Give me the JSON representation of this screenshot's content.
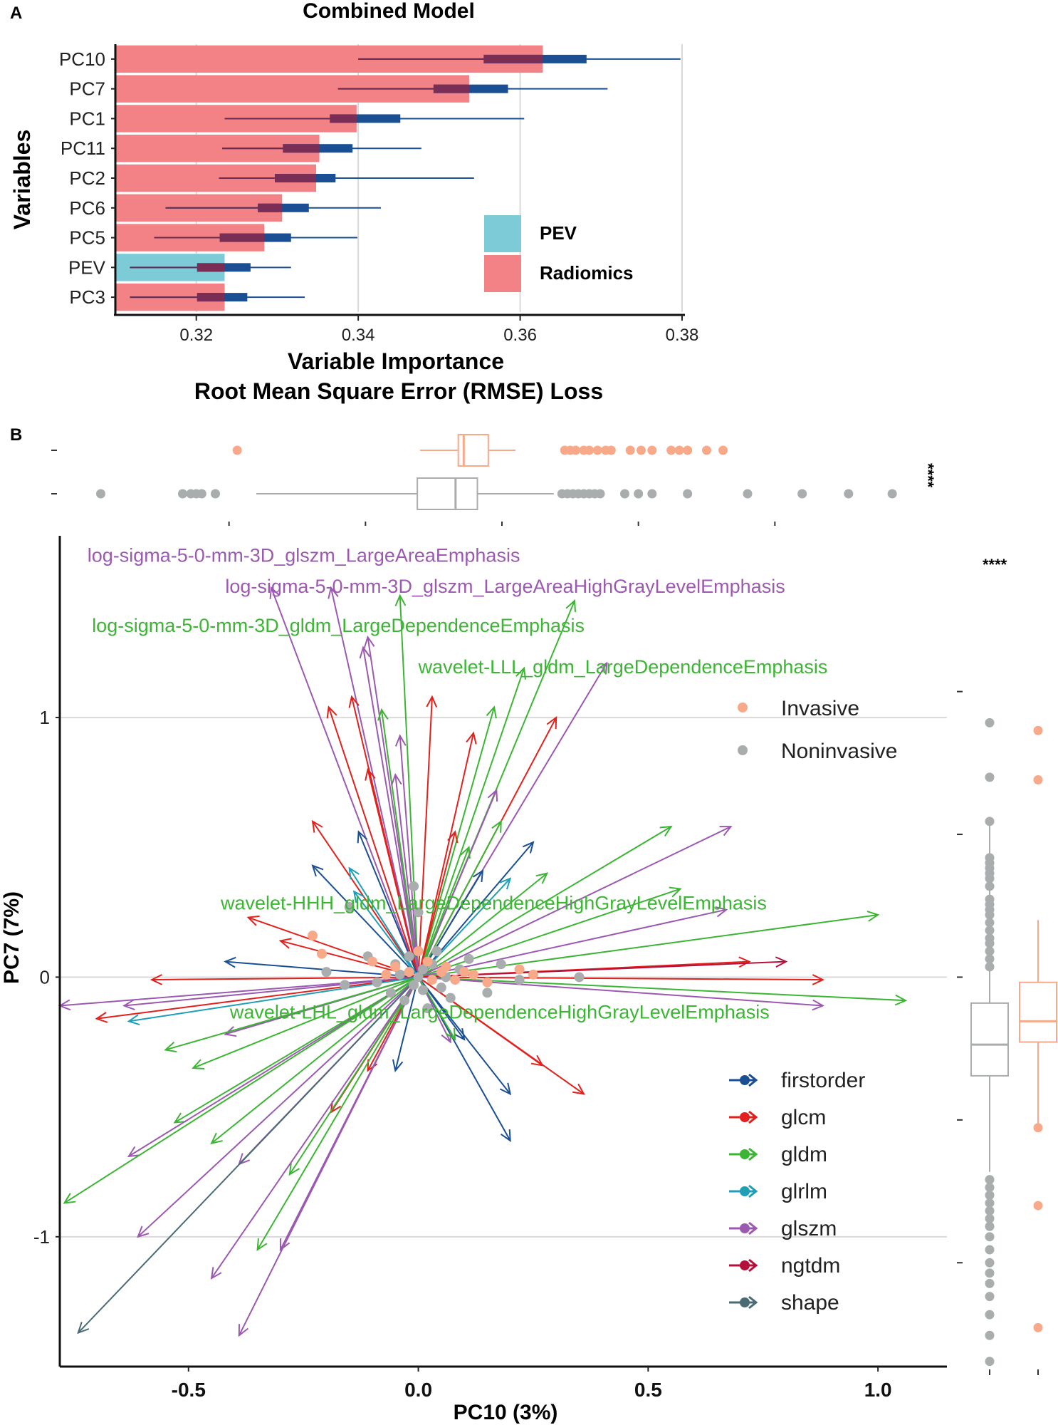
{
  "chart_data": [
    {
      "panel": "A",
      "type": "bar",
      "title": "Combined Model",
      "xlabel": "Variable Importance",
      "xlabel2": "Root Mean Square Error (RMSE) Loss",
      "ylabel": "Variables",
      "xlim": [
        0.31,
        0.38
      ],
      "xticks": [
        0.32,
        0.34,
        0.36,
        0.38
      ],
      "xtick_labels": [
        "0.32",
        "0.34",
        "0.36",
        "0.38"
      ],
      "grid": "vertical",
      "legend": [
        {
          "label": "PEV",
          "color": "#7ecbd8"
        },
        {
          "label": "Radiomics",
          "color": "#f28285"
        }
      ],
      "categories": [
        "PC10",
        "PC7",
        "PC1",
        "PC11",
        "PC2",
        "PC6",
        "PC5",
        "PEV",
        "PC3"
      ],
      "values": [
        0.3628,
        0.3537,
        0.3398,
        0.3352,
        0.3348,
        0.3306,
        0.3284,
        0.3235,
        0.3235
      ],
      "groups": [
        "Radiomics",
        "Radiomics",
        "Radiomics",
        "Radiomics",
        "Radiomics",
        "Radiomics",
        "Radiomics",
        "PEV",
        "Radiomics"
      ],
      "boxplots": [
        {
          "min": 0.34,
          "q1": 0.3555,
          "q3": 0.3682,
          "max": 0.3798
        },
        {
          "min": 0.3375,
          "q1": 0.3493,
          "q3": 0.3585,
          "max": 0.3708
        },
        {
          "min": 0.3235,
          "q1": 0.3365,
          "q3": 0.3452,
          "max": 0.3605
        },
        {
          "min": 0.3232,
          "q1": 0.3307,
          "q3": 0.3393,
          "max": 0.3478
        },
        {
          "min": 0.3228,
          "q1": 0.3297,
          "q3": 0.3372,
          "max": 0.3543
        },
        {
          "min": 0.3162,
          "q1": 0.3276,
          "q3": 0.3339,
          "max": 0.3428
        },
        {
          "min": 0.3148,
          "q1": 0.3229,
          "q3": 0.3317,
          "max": 0.3399
        },
        {
          "min": 0.3118,
          "q1": 0.3201,
          "q3": 0.3267,
          "max": 0.3317
        },
        {
          "min": 0.3118,
          "q1": 0.3201,
          "q3": 0.3263,
          "max": 0.3334
        }
      ]
    },
    {
      "panel": "B",
      "type": "scatter",
      "xlabel": "PC10 (3%)",
      "ylabel": "PC7 (7%)",
      "xlim": [
        -0.78,
        1.15
      ],
      "ylim": [
        -1.5,
        1.7
      ],
      "xticks": [
        -0.5,
        0.0,
        0.5,
        1.0
      ],
      "xtick_labels": [
        "-0.5",
        "0.0",
        "0.5",
        "1.0"
      ],
      "yticks": [
        -1,
        0,
        1
      ],
      "ytick_labels": [
        "-1",
        "0",
        "1"
      ],
      "significance": "****",
      "group_legend": [
        {
          "label": "Invasive",
          "color": "#f7a98a"
        },
        {
          "label": "Noninvasive",
          "color": "#a9adad"
        }
      ],
      "class_legend": [
        {
          "label": "firstorder",
          "color": "#1b4f93"
        },
        {
          "label": "glcm",
          "color": "#e3201b"
        },
        {
          "label": "gldm",
          "color": "#3cb534"
        },
        {
          "label": "glrlm",
          "color": "#1f9eb5"
        },
        {
          "label": "glszm",
          "color": "#9b59b0"
        },
        {
          "label": "ngtdm",
          "color": "#b5103b"
        },
        {
          "label": "shape",
          "color": "#4a6b73"
        }
      ],
      "annotations": [
        {
          "text": "log-sigma-5-0-mm-3D_glszm_LargeAreaEmphasis",
          "x": -0.72,
          "y": 1.6,
          "color": "#9b59b0"
        },
        {
          "text": "log-sigma-5-0-mm-3D_glszm_LargeAreaHighGrayLevelEmphasis",
          "x": -0.42,
          "y": 1.48,
          "color": "#9b59b0"
        },
        {
          "text": "log-sigma-5-0-mm-3D_gldm_LargeDependenceEmphasis",
          "x": -0.71,
          "y": 1.33,
          "color": "#3cb534"
        },
        {
          "text": "wavelet-LLL_gldm_LargeDependenceEmphasis",
          "x": 0.0,
          "y": 1.17,
          "color": "#3cb534"
        },
        {
          "text": "wavelet-HHH_gldm_LargeDependenceHighGrayLevelEmphasis",
          "x": -0.43,
          "y": 0.26,
          "color": "#3cb534"
        },
        {
          "text": "wavelet-LHL_gldm_LargeDependenceHighGrayLevelEmphasis",
          "x": -0.41,
          "y": -0.16,
          "color": "#3cb534"
        }
      ],
      "loadings": [
        {
          "class": "glszm",
          "x": -0.32,
          "y": 1.5
        },
        {
          "class": "glszm",
          "x": -0.19,
          "y": 1.5
        },
        {
          "class": "gldm",
          "x": -0.04,
          "y": 1.47
        },
        {
          "class": "gldm",
          "x": 0.34,
          "y": 1.45
        },
        {
          "class": "glszm",
          "x": -0.11,
          "y": 1.31
        },
        {
          "class": "glszm",
          "x": -0.12,
          "y": 1.27
        },
        {
          "class": "glszm",
          "x": 0.41,
          "y": 1.21
        },
        {
          "class": "gldm",
          "x": 0.23,
          "y": 1.19
        },
        {
          "class": "glcm",
          "x": -0.195,
          "y": 1.04
        },
        {
          "class": "glcm",
          "x": -0.145,
          "y": 1.08
        },
        {
          "class": "gldm",
          "x": -0.08,
          "y": 1.03
        },
        {
          "class": "glcm",
          "x": 0.03,
          "y": 1.08
        },
        {
          "class": "gldm",
          "x": 0.165,
          "y": 1.04
        },
        {
          "class": "glcm",
          "x": 0.3,
          "y": 1.0
        },
        {
          "class": "glszm",
          "x": -0.04,
          "y": 0.93
        },
        {
          "class": "glcm",
          "x": 0.12,
          "y": 0.94
        },
        {
          "class": "glcm",
          "x": -0.11,
          "y": 0.8
        },
        {
          "class": "glszm",
          "x": -0.05,
          "y": 0.78
        },
        {
          "class": "glszm",
          "x": 0.17,
          "y": 0.72
        },
        {
          "class": "gldm",
          "x": 0.18,
          "y": 0.6
        },
        {
          "class": "glcm",
          "x": -0.23,
          "y": 0.6
        },
        {
          "class": "firstorder",
          "x": -0.13,
          "y": 0.56
        },
        {
          "class": "glcm",
          "x": 0.08,
          "y": 0.56
        },
        {
          "class": "gldm",
          "x": 0.11,
          "y": 0.5
        },
        {
          "class": "gldm",
          "x": 0.55,
          "y": 0.58
        },
        {
          "class": "glszm",
          "x": 0.68,
          "y": 0.58
        },
        {
          "class": "firstorder",
          "x": 0.25,
          "y": 0.52
        },
        {
          "class": "firstorder",
          "x": -0.23,
          "y": 0.43
        },
        {
          "class": "glrlm",
          "x": -0.15,
          "y": 0.42
        },
        {
          "class": "firstorder",
          "x": 0.14,
          "y": 0.41
        },
        {
          "class": "glrlm",
          "x": 0.2,
          "y": 0.38
        },
        {
          "class": "gldm",
          "x": 0.28,
          "y": 0.4
        },
        {
          "class": "gldm",
          "x": 0.57,
          "y": 0.34
        },
        {
          "class": "glrlm",
          "x": -0.14,
          "y": 0.33
        },
        {
          "class": "gldm",
          "x": 1.0,
          "y": 0.24
        },
        {
          "class": "glszm",
          "x": 0.67,
          "y": 0.26
        },
        {
          "class": "glcm",
          "x": -0.37,
          "y": 0.23
        },
        {
          "class": "glcm",
          "x": -0.3,
          "y": 0.14
        },
        {
          "class": "firstorder",
          "x": -0.42,
          "y": 0.06
        },
        {
          "class": "glcm",
          "x": 0.72,
          "y": 0.06
        },
        {
          "class": "ngtdm",
          "x": 0.8,
          "y": 0.06
        },
        {
          "class": "glcm",
          "x": -0.58,
          "y": -0.01
        },
        {
          "class": "glszm",
          "x": -0.78,
          "y": -0.11
        },
        {
          "class": "glszm",
          "x": -0.64,
          "y": -0.11
        },
        {
          "class": "glcm",
          "x": -0.7,
          "y": -0.16
        },
        {
          "class": "glrlm",
          "x": -0.63,
          "y": -0.17
        },
        {
          "class": "glcm",
          "x": 0.88,
          "y": -0.01
        },
        {
          "class": "gldm",
          "x": 1.06,
          "y": -0.09
        },
        {
          "class": "glszm",
          "x": 0.88,
          "y": -0.11
        },
        {
          "class": "glszm",
          "x": -0.42,
          "y": -0.22
        },
        {
          "class": "gldm",
          "x": -0.49,
          "y": -0.35
        },
        {
          "class": "gldm",
          "x": -0.55,
          "y": -0.28
        },
        {
          "class": "glcm",
          "x": -0.11,
          "y": -0.36
        },
        {
          "class": "firstorder",
          "x": -0.05,
          "y": -0.36
        },
        {
          "class": "glcm",
          "x": 0.36,
          "y": -0.45
        },
        {
          "class": "firstorder",
          "x": 0.2,
          "y": -0.45
        },
        {
          "class": "glcm",
          "x": 0.27,
          "y": -0.34
        },
        {
          "class": "gldm",
          "x": -0.53,
          "y": -0.56
        },
        {
          "class": "firstorder",
          "x": 0.2,
          "y": -0.63
        },
        {
          "class": "glcm",
          "x": -0.19,
          "y": -0.52
        },
        {
          "class": "glszm",
          "x": -0.39,
          "y": -0.72
        },
        {
          "class": "gldm",
          "x": -0.45,
          "y": -0.64
        },
        {
          "class": "glszm",
          "x": -0.63,
          "y": -0.69
        },
        {
          "class": "gldm",
          "x": -0.28,
          "y": -0.76
        },
        {
          "class": "gldm",
          "x": -0.77,
          "y": -0.87
        },
        {
          "class": "glszm",
          "x": -0.61,
          "y": -1.0
        },
        {
          "class": "gldm",
          "x": -0.35,
          "y": -1.05
        },
        {
          "class": "glszm",
          "x": -0.3,
          "y": -1.05
        },
        {
          "class": "glszm",
          "x": -0.45,
          "y": -1.16
        },
        {
          "class": "glszm",
          "x": -0.39,
          "y": -1.38
        },
        {
          "class": "shape",
          "x": -0.74,
          "y": -1.37
        },
        {
          "class": "glszm",
          "x": 0.07,
          "y": -0.25
        },
        {
          "class": "firstorder",
          "x": 0.1,
          "y": -0.24
        },
        {
          "class": "gldm",
          "x": 0.08,
          "y": -0.24
        }
      ],
      "points_invasive": [
        [
          -0.23,
          0.16
        ],
        [
          -0.21,
          0.09
        ],
        [
          -0.1,
          0.06
        ],
        [
          -0.05,
          0.04
        ],
        [
          0.0,
          0.1
        ],
        [
          0.02,
          0.06
        ],
        [
          0.05,
          0.02
        ],
        [
          0.08,
          -0.01
        ],
        [
          0.12,
          0.01
        ],
        [
          0.15,
          -0.02
        ],
        [
          0.22,
          0.03
        ],
        [
          0.25,
          0.01
        ],
        [
          0.03,
          -0.01
        ],
        [
          -0.02,
          0.02
        ],
        [
          0.06,
          0.04
        ],
        [
          -0.07,
          0.01
        ],
        [
          0.1,
          0.02
        ]
      ],
      "points_noninvasive": [
        [
          -0.01,
          0.35
        ],
        [
          0.0,
          0.25
        ],
        [
          -0.15,
          0.27
        ],
        [
          0.35,
          0.0
        ],
        [
          0.22,
          -0.01
        ],
        [
          0.15,
          -0.06
        ],
        [
          -0.02,
          0.08
        ],
        [
          -0.05,
          0.05
        ],
        [
          0.03,
          0.05
        ],
        [
          0.05,
          -0.04
        ],
        [
          -0.09,
          -0.02
        ],
        [
          0.01,
          -0.05
        ],
        [
          -0.2,
          0.02
        ],
        [
          -0.16,
          -0.03
        ],
        [
          0.11,
          0.07
        ],
        [
          0.18,
          0.05
        ],
        [
          -0.03,
          -0.09
        ],
        [
          0.02,
          -0.12
        ],
        [
          0.07,
          -0.08
        ],
        [
          -0.11,
          0.08
        ],
        [
          0.09,
          0.03
        ],
        [
          -0.06,
          -0.06
        ],
        [
          0.04,
          0.1
        ],
        [
          0.0,
          0.0
        ],
        [
          -0.04,
          0.01
        ],
        [
          0.06,
          0.0
        ],
        [
          -0.01,
          -0.03
        ],
        [
          0.01,
          0.03
        ]
      ],
      "box_top": {
        "Invasive": {
          "min": -0.3,
          "q1": -0.16,
          "median": -0.14,
          "q3": -0.05,
          "max": 0.05,
          "outliers": [
            -0.97,
            0.23,
            0.25,
            0.27,
            0.3,
            0.32,
            0.35,
            0.38,
            0.4,
            0.47,
            0.51,
            0.55,
            0.62,
            0.65,
            0.68,
            0.75,
            0.81
          ]
        },
        "Noninvasive": {
          "min": -0.9,
          "q1": -0.31,
          "median": -0.17,
          "q3": -0.09,
          "max": 0.19,
          "outliers": [
            -1.47,
            -1.17,
            -1.14,
            -1.12,
            -1.1,
            -1.05,
            0.22,
            0.24,
            0.26,
            0.28,
            0.3,
            0.32,
            0.34,
            0.36,
            0.45,
            0.5,
            0.55,
            0.68,
            0.9,
            1.1,
            1.27,
            1.43
          ]
        }
      },
      "box_right": {
        "Noninvasive": {
          "min": -0.75,
          "q1": -0.38,
          "median": -0.26,
          "q3": -0.1,
          "max": 0.6,
          "outliers": [
            0.98,
            0.77,
            0.6,
            0.46,
            0.44,
            0.42,
            0.4,
            0.38,
            0.35,
            0.3,
            0.28,
            0.26,
            0.24,
            0.21,
            0.18,
            0.15,
            0.13,
            0.1,
            0.07,
            0.04,
            -0.78,
            -0.81,
            -0.84,
            -0.87,
            -0.9,
            -0.93,
            -0.96,
            -1.0,
            -1.05,
            -1.1,
            -1.14,
            -1.18,
            -1.23,
            -1.3,
            -1.38,
            -1.48
          ]
        },
        "Invasive": {
          "min": -0.57,
          "q1": -0.25,
          "median": -0.17,
          "q3": -0.02,
          "max": 0.22,
          "outliers": [
            0.95,
            0.76,
            -0.58,
            -0.88,
            -1.35
          ]
        }
      }
    }
  ],
  "panel_labels": {
    "a": "A",
    "b": "B"
  }
}
